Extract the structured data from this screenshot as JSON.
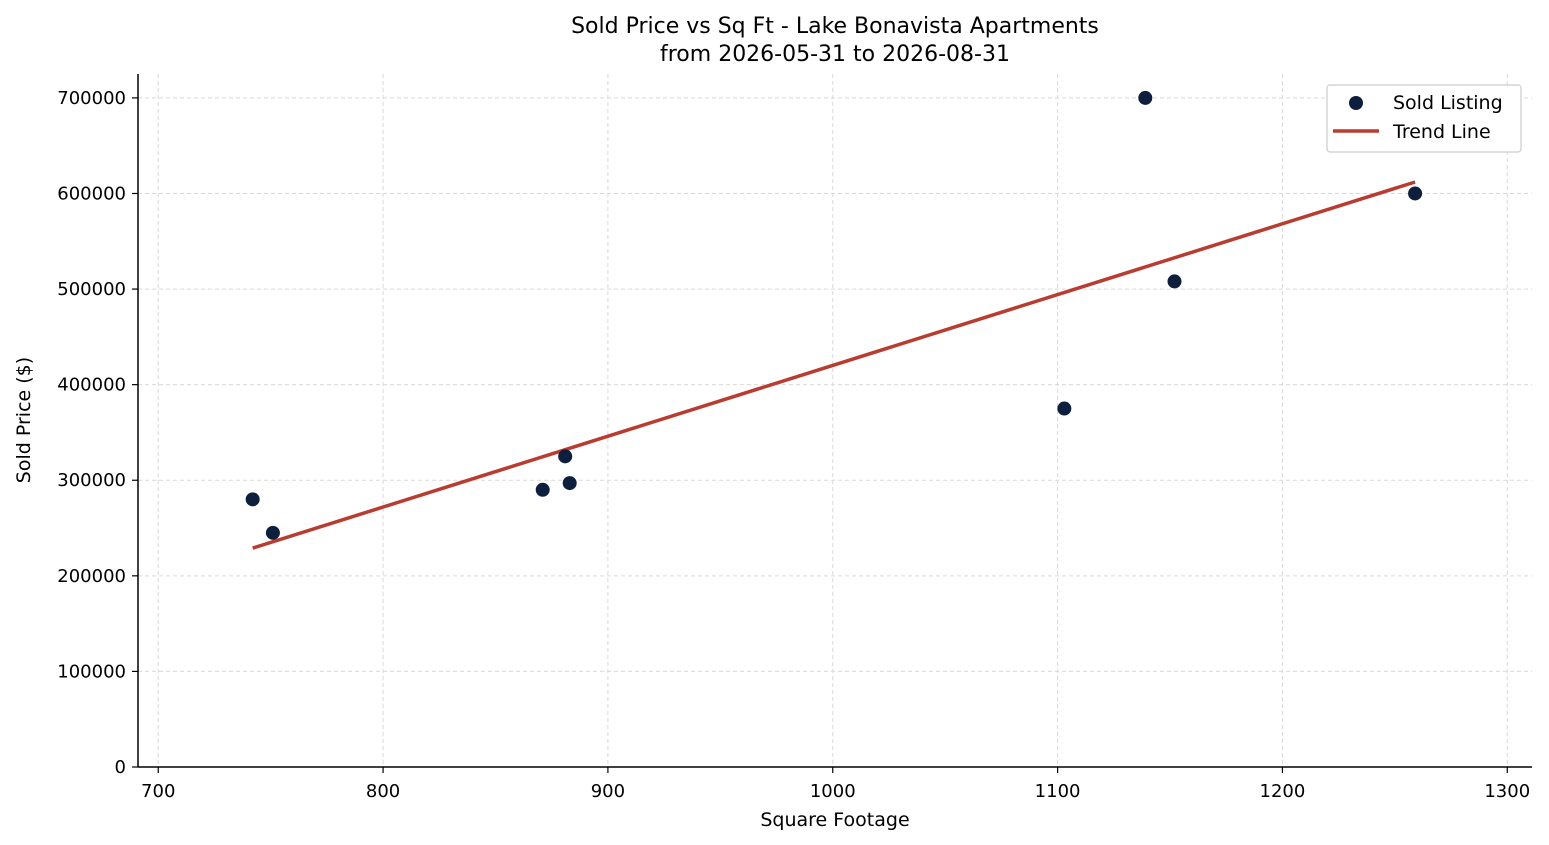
{
  "chart_data": {
    "type": "scatter",
    "title": "Sold Price vs Sq Ft - Lake Bonavista Apartments",
    "subtitle": "from 2026-05-31 to 2026-08-31",
    "xlabel": "Square Footage",
    "ylabel": "Sold Price ($)",
    "xlim": [
      691,
      1311
    ],
    "ylim": [
      0,
      725000
    ],
    "xticks": [
      700,
      800,
      900,
      1000,
      1100,
      1200,
      1300
    ],
    "yticks": [
      0,
      100000,
      200000,
      300000,
      400000,
      500000,
      600000,
      700000
    ],
    "grid": true,
    "legend_position": "top-right",
    "series": [
      {
        "name": "Sold Listing",
        "kind": "scatter",
        "color": "#0d1f3c",
        "points": [
          {
            "x": 742,
            "y": 280000
          },
          {
            "x": 751,
            "y": 245000
          },
          {
            "x": 871,
            "y": 290000
          },
          {
            "x": 881,
            "y": 325000
          },
          {
            "x": 883,
            "y": 297000
          },
          {
            "x": 1103,
            "y": 375000
          },
          {
            "x": 1139,
            "y": 700000
          },
          {
            "x": 1152,
            "y": 508000
          },
          {
            "x": 1259,
            "y": 600000
          }
        ]
      },
      {
        "name": "Trend Line",
        "kind": "line",
        "color": "#b83c30",
        "points": [
          {
            "x": 742,
            "y": 229000
          },
          {
            "x": 1259,
            "y": 612000
          }
        ]
      }
    ]
  }
}
